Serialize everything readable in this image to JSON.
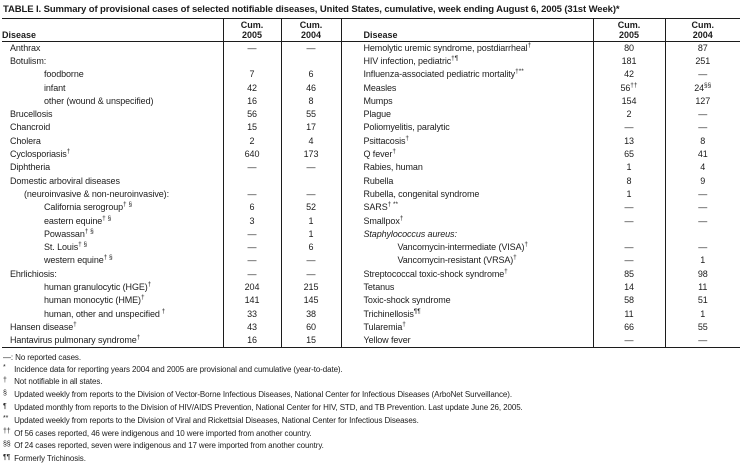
{
  "title": "TABLE I. Summary of provisional cases of selected notifiable diseases, United States, cumulative, week ending August 6, 2005 (31st Week)*",
  "header": {
    "disease": "Disease",
    "cum": "Cum.",
    "y2005": "2005",
    "y2004": "2004"
  },
  "rows": {
    "left": [
      {
        "name": "Anthrax",
        "indent": 0,
        "v2005": "—",
        "v2004": "—"
      },
      {
        "name": "Botulism:",
        "indent": 0,
        "v2005": "",
        "v2004": ""
      },
      {
        "name": "foodborne",
        "indent": 2,
        "v2005": "7",
        "v2004": "6"
      },
      {
        "name": "infant",
        "indent": 2,
        "v2005": "42",
        "v2004": "46"
      },
      {
        "name": "other (wound & unspecified)",
        "indent": 2,
        "v2005": "16",
        "v2004": "8"
      },
      {
        "name": "Brucellosis",
        "indent": 0,
        "v2005": "56",
        "v2004": "55"
      },
      {
        "name": "Chancroid",
        "indent": 0,
        "v2005": "15",
        "v2004": "17"
      },
      {
        "name": "Cholera",
        "indent": 0,
        "v2005": "2",
        "v2004": "4"
      },
      {
        "name": "Cyclosporiasis",
        "sup": "†",
        "indent": 0,
        "v2005": "640",
        "v2004": "173"
      },
      {
        "name": "Diphtheria",
        "indent": 0,
        "v2005": "—",
        "v2004": "—"
      },
      {
        "name": "Domestic arboviral diseases",
        "indent": 0,
        "v2005": "",
        "v2004": ""
      },
      {
        "name": "(neuroinvasive & non-neuroinvasive):",
        "indent": 1,
        "v2005": "—",
        "v2004": "—"
      },
      {
        "name": "California serogroup",
        "sup": "† §",
        "indent": 2,
        "v2005": "6",
        "v2004": "52"
      },
      {
        "name": "eastern equine",
        "sup": "† §",
        "indent": 2,
        "v2005": "3",
        "v2004": "1"
      },
      {
        "name": "Powassan",
        "sup": "† §",
        "indent": 2,
        "v2005": "—",
        "v2004": "1"
      },
      {
        "name": "St. Louis",
        "sup": "† §",
        "indent": 2,
        "v2005": "—",
        "v2004": "6"
      },
      {
        "name": "western equine",
        "sup": "† §",
        "indent": 2,
        "v2005": "—",
        "v2004": "—"
      },
      {
        "name": "Ehrlichiosis:",
        "indent": 0,
        "v2005": "—",
        "v2004": "—"
      },
      {
        "name": "human granulocytic (HGE)",
        "sup": "†",
        "indent": 2,
        "v2005": "204",
        "v2004": "215"
      },
      {
        "name": "human monocytic (HME)",
        "sup": "†",
        "indent": 2,
        "v2005": "141",
        "v2004": "145"
      },
      {
        "name": "human, other and unspecified",
        "sup": " †",
        "indent": 2,
        "v2005": "33",
        "v2004": "38"
      },
      {
        "name": "Hansen disease",
        "sup": "†",
        "indent": 0,
        "v2005": "43",
        "v2004": "60"
      },
      {
        "name": "Hantavirus pulmonary syndrome",
        "sup": "†",
        "indent": 0,
        "v2005": "16",
        "v2004": "15"
      }
    ],
    "right": [
      {
        "name": "Hemolytic uremic syndrome, postdiarrheal",
        "sup": "†",
        "indent": 0,
        "v2005": "80",
        "v2004": "87"
      },
      {
        "name": "HIV infection, pediatric",
        "sup": "†¶",
        "indent": 0,
        "v2005": "181",
        "v2004": "251"
      },
      {
        "name": "Influenza-associated pediatric mortality",
        "sup": "†**",
        "indent": 0,
        "v2005": "42",
        "v2004": "—"
      },
      {
        "name": "Measles",
        "indent": 0,
        "v2005": "56",
        "s2005": "††",
        "v2004": "24",
        "s2004": "§§"
      },
      {
        "name": "Mumps",
        "indent": 0,
        "v2005": "154",
        "v2004": "127"
      },
      {
        "name": "Plague",
        "indent": 0,
        "v2005": "2",
        "v2004": "—"
      },
      {
        "name": "Poliomyelitis, paralytic",
        "indent": 0,
        "v2005": "—",
        "v2004": "—"
      },
      {
        "name": "Psittacosis",
        "sup": "†",
        "indent": 0,
        "v2005": "13",
        "v2004": "8"
      },
      {
        "name": "Q fever",
        "sup": "†",
        "indent": 0,
        "v2005": "65",
        "v2004": "41"
      },
      {
        "name": "Rabies, human",
        "indent": 0,
        "v2005": "1",
        "v2004": "4"
      },
      {
        "name": "Rubella",
        "indent": 0,
        "v2005": "8",
        "v2004": "9"
      },
      {
        "name": "Rubella, congenital syndrome",
        "indent": 0,
        "v2005": "1",
        "v2004": "—"
      },
      {
        "name": "SARS",
        "sup": "† **",
        "indent": 0,
        "v2005": "—",
        "v2004": "—"
      },
      {
        "name": "Smallpox",
        "sup": "†",
        "indent": 0,
        "v2005": "—",
        "v2004": "—"
      },
      {
        "name": "Staphylococcus aureus:",
        "indent": 0,
        "italic": true,
        "v2005": "",
        "v2004": ""
      },
      {
        "name": "Vancomycin-intermediate (VISA)",
        "sup": "†",
        "indent": 2,
        "v2005": "—",
        "v2004": "—"
      },
      {
        "name": "Vancomycin-resistant (VRSA)",
        "sup": "†",
        "indent": 2,
        "v2005": "—",
        "v2004": "1"
      },
      {
        "name": "Streptococcal toxic-shock syndrome",
        "sup": "†",
        "indent": 0,
        "v2005": "85",
        "v2004": "98"
      },
      {
        "name": "Tetanus",
        "indent": 0,
        "v2005": "14",
        "v2004": "11"
      },
      {
        "name": "Toxic-shock syndrome",
        "indent": 0,
        "v2005": "58",
        "v2004": "51"
      },
      {
        "name": "Trichinellosis",
        "sup": "¶¶",
        "indent": 0,
        "v2005": "11",
        "v2004": "1"
      },
      {
        "name": "Tularemia",
        "sup": "†",
        "indent": 0,
        "v2005": "66",
        "v2004": "55"
      },
      {
        "name": "Yellow fever",
        "indent": 0,
        "v2005": "—",
        "v2004": "—"
      }
    ]
  },
  "footnotes": [
    {
      "marker": "—:",
      "raised": false,
      "text": "No reported cases."
    },
    {
      "marker": "*",
      "raised": true,
      "text": "Incidence data for reporting years 2004 and 2005 are provisional and cumulative (year-to-date)."
    },
    {
      "marker": "†",
      "raised": true,
      "text": "Not notifiable in all states."
    },
    {
      "marker": "§",
      "raised": true,
      "text": "Updated weekly from reports to the Division of Vector-Borne Infectious Diseases, National Center for Infectious Diseases (ArboNet Surveillance)."
    },
    {
      "marker": "¶",
      "raised": true,
      "text": "Updated monthly from reports to the Division of HIV/AIDS Prevention, National Center for HIV, STD, and TB Prevention. Last update June 26, 2005."
    },
    {
      "marker": "**",
      "raised": true,
      "text": "Updated weekly from reports to the Division of Viral and Rickettsial Diseases, National Center for Infectious Diseases."
    },
    {
      "marker": "††",
      "raised": true,
      "text": "Of 56 cases reported, 46 were indigenous and 10 were imported from another country."
    },
    {
      "marker": "§§",
      "raised": true,
      "text": "Of 24 cases reported, seven were indigenous and 17 were imported from another country."
    },
    {
      "marker": "¶¶",
      "raised": true,
      "text": "Formerly Trichinosis."
    }
  ]
}
